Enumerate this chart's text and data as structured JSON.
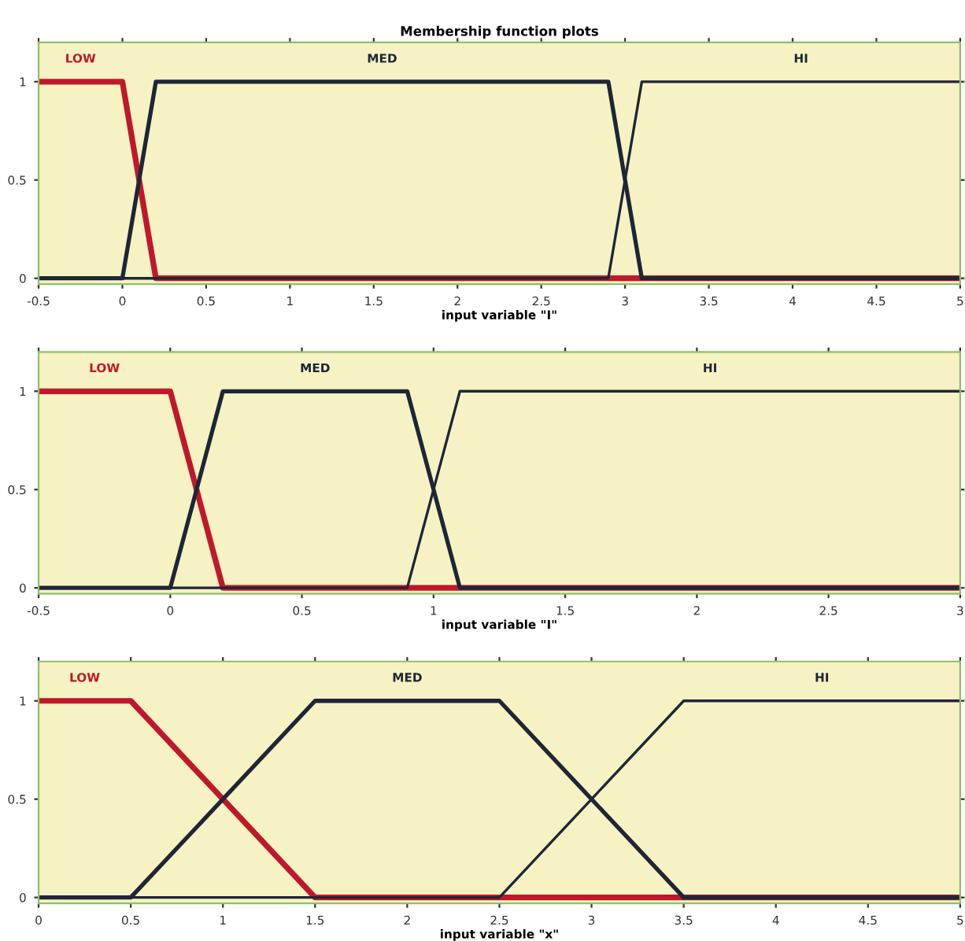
{
  "chart_data": [
    {
      "type": "line",
      "title": "Membership function plots",
      "xlabel": "input variable \"I\"",
      "xlim": [
        -0.5,
        5
      ],
      "xticks": [
        -0.5,
        0,
        0.5,
        1,
        1.5,
        2,
        2.5,
        3,
        3.5,
        4,
        4.5,
        5
      ],
      "ylim": [
        -0.03,
        1.2
      ],
      "yticks": [
        0,
        0.5,
        1
      ],
      "grid": false,
      "legend": false,
      "series": [
        {
          "name": "LOW",
          "color": "#c0182a",
          "x": [
            -0.5,
            0,
            0.2,
            5
          ],
          "values": [
            1,
            1,
            0,
            0
          ]
        },
        {
          "name": "MED",
          "color": "#1e2636",
          "x": [
            -0.5,
            0,
            0.2,
            2.9,
            3.1,
            5
          ],
          "values": [
            0,
            0,
            1,
            1,
            0,
            0
          ]
        },
        {
          "name": "HI",
          "color": "#1e2636",
          "x": [
            -0.5,
            2.9,
            3.1,
            5
          ],
          "values": [
            0,
            0,
            1,
            1
          ]
        }
      ]
    },
    {
      "type": "line",
      "xlabel": "input variable \"I\"",
      "xlim": [
        -0.5,
        3
      ],
      "xticks": [
        -0.5,
        0,
        0.5,
        1,
        1.5,
        2,
        2.5,
        3
      ],
      "ylim": [
        -0.03,
        1.2
      ],
      "yticks": [
        0,
        0.5,
        1
      ],
      "grid": false,
      "legend": false,
      "series": [
        {
          "name": "LOW",
          "color": "#c0182a",
          "x": [
            -0.5,
            0,
            0.2,
            3
          ],
          "values": [
            1,
            1,
            0,
            0
          ]
        },
        {
          "name": "MED",
          "color": "#1e2636",
          "x": [
            -0.5,
            0,
            0.2,
            0.9,
            1.1,
            3
          ],
          "values": [
            0,
            0,
            1,
            1,
            0,
            0
          ]
        },
        {
          "name": "HI",
          "color": "#1e2636",
          "x": [
            -0.5,
            0.9,
            1.1,
            3
          ],
          "values": [
            0,
            0,
            1,
            1
          ]
        }
      ]
    },
    {
      "type": "line",
      "xlabel": "input variable \"x\"",
      "xlim": [
        0,
        5
      ],
      "xticks": [
        0,
        0.5,
        1,
        1.5,
        2,
        2.5,
        3,
        3.5,
        4,
        4.5,
        5
      ],
      "ylim": [
        -0.03,
        1.2
      ],
      "yticks": [
        0,
        0.5,
        1
      ],
      "grid": false,
      "legend": false,
      "series": [
        {
          "name": "LOW",
          "color": "#c0182a",
          "x": [
            0,
            0.5,
            1.5,
            5
          ],
          "values": [
            1,
            1,
            0,
            0
          ]
        },
        {
          "name": "MED",
          "color": "#1e2636",
          "x": [
            0,
            0.5,
            1.5,
            2.5,
            3.5,
            5
          ],
          "values": [
            0,
            0,
            1,
            1,
            0,
            0
          ]
        },
        {
          "name": "HI",
          "color": "#1e2636",
          "x": [
            0,
            2.5,
            3.5,
            5
          ],
          "values": [
            0,
            0,
            1,
            1
          ]
        }
      ]
    }
  ]
}
